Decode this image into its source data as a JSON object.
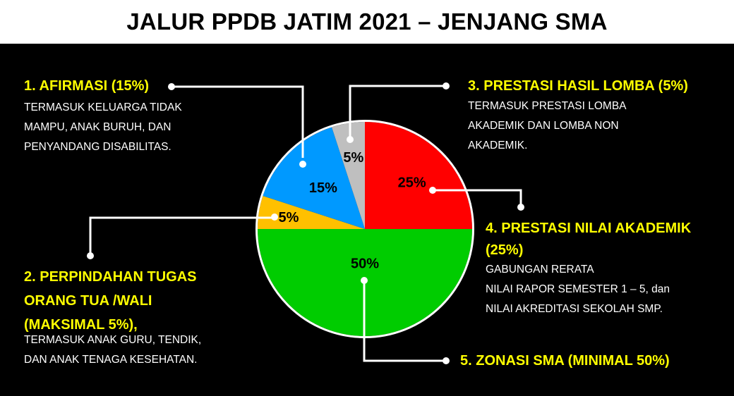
{
  "title": "JALUR PPDB JATIM 2021 – JENJANG SMA",
  "colors": {
    "background": "#000000",
    "title_bg": "#FFFFFF",
    "label": "#FFFF00",
    "text": "#FFFFFF"
  },
  "chart_data": {
    "type": "pie",
    "title": "JALUR PPDB JATIM 2021 – JENJANG SMA",
    "start": "top",
    "direction": "clockwise",
    "slices": [
      {
        "name": "Prestasi Nilai Akademik",
        "value": 25,
        "label": "25%",
        "color": "#FF0000"
      },
      {
        "name": "Zonasi SMA",
        "value": 50,
        "label": "50%",
        "color": "#00CC00"
      },
      {
        "name": "Perpindahan Tugas Orang Tua / Wali",
        "value": 5,
        "label": "5%",
        "color": "#FFC000"
      },
      {
        "name": "Afirmasi",
        "value": 15,
        "label": "15%",
        "color": "#0099FF"
      },
      {
        "name": "Prestasi Hasil Lomba",
        "value": 5,
        "label": "5%",
        "color": "#BFBFBF"
      }
    ]
  },
  "callouts": {
    "afirmasi": {
      "title": "1. AFIRMASI (15%)",
      "lines": [
        "TERMASUK KELUARGA TIDAK",
        "MAMPU, ANAK BURUH, DAN",
        "PENYANDANG DISABILITAS."
      ]
    },
    "perpindahan": {
      "title_lines": [
        "2. PERPINDAHAN TUGAS",
        "ORANG TUA /WALI",
        "(MAKSIMAL 5%),"
      ],
      "lines": [
        "TERMASUK ANAK GURU, TENDIK,",
        "DAN ANAK TENAGA KESEHATAN."
      ]
    },
    "lomba": {
      "title": "3. PRESTASI HASIL LOMBA (5%)",
      "lines": [
        "TERMASUK PRESTASI LOMBA",
        "AKADEMIK DAN LOMBA NON",
        "AKADEMIK."
      ]
    },
    "akademik": {
      "title_lines": [
        "4. PRESTASI NILAI AKADEMIK",
        "(25%)"
      ],
      "lines": [
        "GABUNGAN RERATA",
        "NILAI RAPOR SEMESTER 1 – 5, dan",
        "NILAI AKREDITASI SEKOLAH SMP."
      ]
    },
    "zonasi": {
      "title": "5. ZONASI SMA (MINIMAL 50%)"
    }
  }
}
